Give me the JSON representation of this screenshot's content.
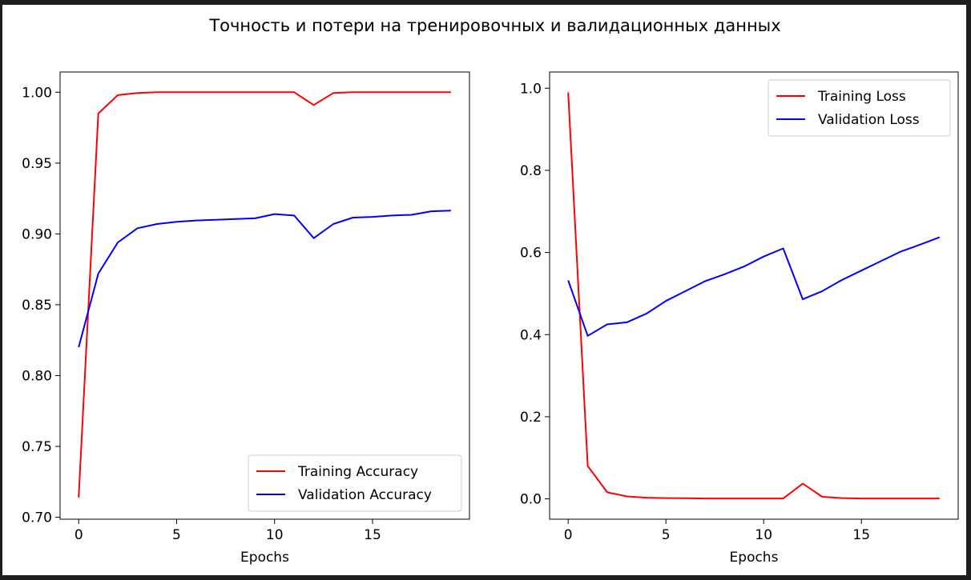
{
  "suptitle": "Точность и потери на тренировочных и валидационных данных",
  "chart_data": [
    {
      "type": "line",
      "title": "",
      "xlabel": "Epochs",
      "ylabel": "",
      "xlim": [
        -0.95,
        19.95
      ],
      "ylim": [
        0.6986,
        1.0143
      ],
      "x_ticks": [
        0,
        5,
        10,
        15
      ],
      "y_ticks": [
        0.7,
        0.75,
        0.8,
        0.85,
        0.9,
        0.95,
        1.0
      ],
      "y_tick_labels": [
        "0.70",
        "0.75",
        "0.80",
        "0.85",
        "0.90",
        "0.95",
        "1.00"
      ],
      "legend_position": "lower-right",
      "x": [
        0,
        1,
        2,
        3,
        4,
        5,
        6,
        7,
        8,
        9,
        10,
        11,
        12,
        13,
        14,
        15,
        16,
        17,
        18,
        19
      ],
      "series": [
        {
          "name": "Training Accuracy",
          "color": "#ff0000",
          "values": [
            0.714,
            0.985,
            0.998,
            0.9995,
            1.0,
            1.0,
            1.0,
            1.0,
            1.0,
            1.0,
            1.0,
            1.0,
            0.991,
            0.9995,
            1.0,
            1.0,
            1.0,
            1.0,
            1.0,
            1.0
          ]
        },
        {
          "name": "Validation Accuracy",
          "color": "#0000ff",
          "values": [
            0.82,
            0.872,
            0.894,
            0.904,
            0.907,
            0.9085,
            0.9095,
            0.91,
            0.9105,
            0.911,
            0.914,
            0.913,
            0.897,
            0.907,
            0.9115,
            0.912,
            0.913,
            0.9135,
            0.916,
            0.9165
          ]
        }
      ]
    },
    {
      "type": "line",
      "title": "",
      "xlabel": "Epochs",
      "ylabel": "",
      "xlim": [
        -0.95,
        19.95
      ],
      "ylim": [
        -0.0495,
        1.0395
      ],
      "x_ticks": [
        0,
        5,
        10,
        15
      ],
      "y_ticks": [
        0.0,
        0.2,
        0.4,
        0.6,
        0.8,
        1.0
      ],
      "y_tick_labels": [
        "0.0",
        "0.2",
        "0.4",
        "0.6",
        "0.8",
        "1.0"
      ],
      "legend_position": "upper-right",
      "x": [
        0,
        1,
        2,
        3,
        4,
        5,
        6,
        7,
        8,
        9,
        10,
        11,
        12,
        13,
        14,
        15,
        16,
        17,
        18,
        19
      ],
      "series": [
        {
          "name": "Training Loss",
          "color": "#ff0000",
          "values": [
            0.99,
            0.08,
            0.016,
            0.006,
            0.003,
            0.002,
            0.0015,
            0.001,
            0.001,
            0.001,
            0.001,
            0.001,
            0.037,
            0.005,
            0.002,
            0.001,
            0.001,
            0.001,
            0.001,
            0.001
          ]
        },
        {
          "name": "Validation Loss",
          "color": "#0000ff",
          "values": [
            0.532,
            0.397,
            0.425,
            0.43,
            0.451,
            0.482,
            0.506,
            0.53,
            0.547,
            0.566,
            0.59,
            0.61,
            0.486,
            0.506,
            0.533,
            0.556,
            0.579,
            0.602,
            0.619,
            0.637
          ]
        }
      ]
    }
  ]
}
